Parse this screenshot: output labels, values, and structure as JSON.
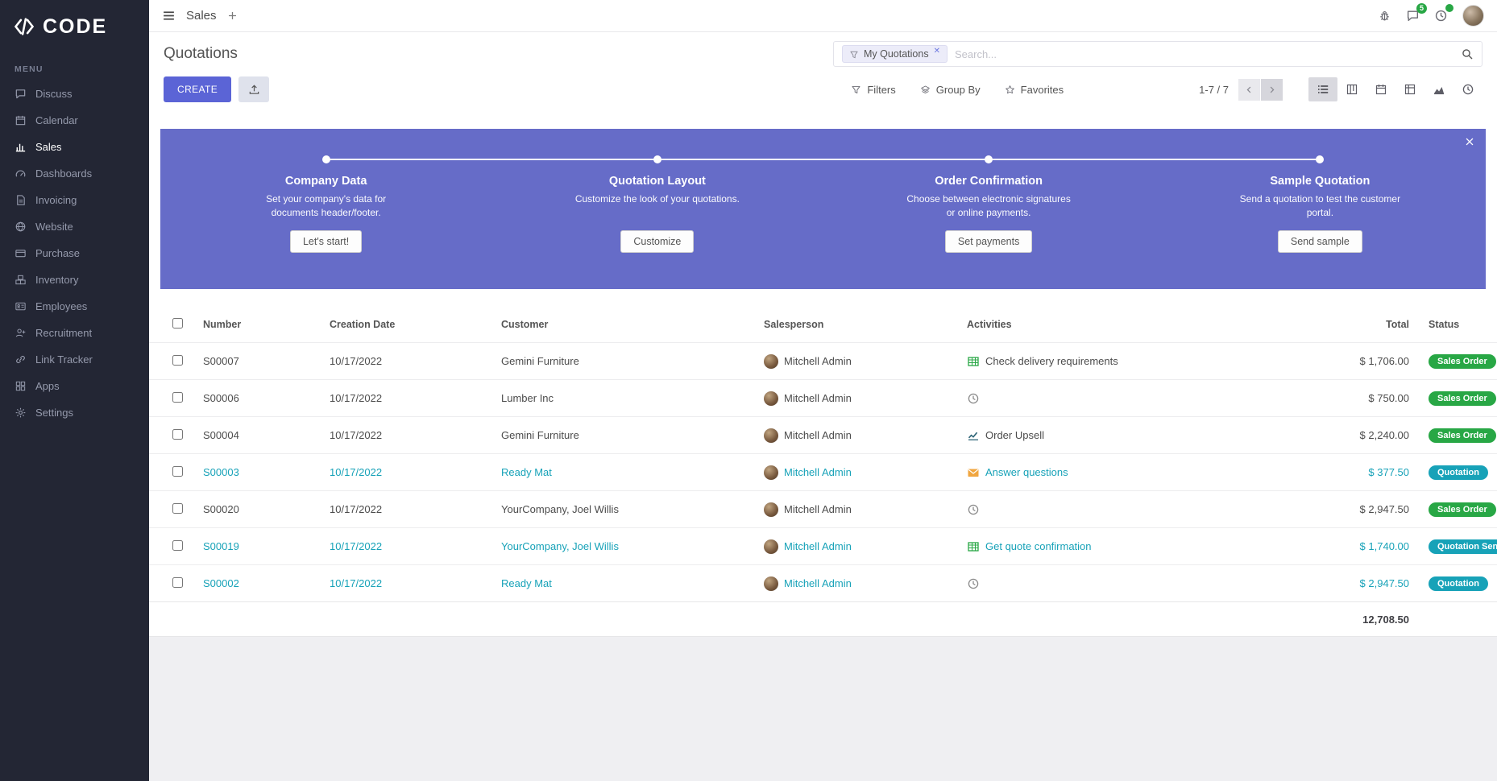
{
  "colors": {
    "primary": "#5b64d6",
    "success": "#28a745",
    "info": "#17a2b8",
    "sidebar_bg": "#232634",
    "banner": "#666cc8"
  },
  "brand": {
    "name": "CODE"
  },
  "sidebar": {
    "menu_label": "MENU",
    "items": [
      {
        "label": "Discuss",
        "icon": "chat",
        "active": false
      },
      {
        "label": "Calendar",
        "icon": "calendar",
        "active": false
      },
      {
        "label": "Sales",
        "icon": "bar-chart",
        "active": true
      },
      {
        "label": "Dashboards",
        "icon": "gauge",
        "active": false
      },
      {
        "label": "Invoicing",
        "icon": "document",
        "active": false
      },
      {
        "label": "Website",
        "icon": "globe",
        "active": false
      },
      {
        "label": "Purchase",
        "icon": "credit-card",
        "active": false
      },
      {
        "label": "Inventory",
        "icon": "boxes",
        "active": false
      },
      {
        "label": "Employees",
        "icon": "id-card",
        "active": false
      },
      {
        "label": "Recruitment",
        "icon": "user-plus",
        "active": false
      },
      {
        "label": "Link Tracker",
        "icon": "link",
        "active": false
      },
      {
        "label": "Apps",
        "icon": "grid",
        "active": false
      },
      {
        "label": "Settings",
        "icon": "gear",
        "active": false
      }
    ]
  },
  "topbar": {
    "app_name": "Sales",
    "messages_badge": "5"
  },
  "control_panel": {
    "title": "Quotations",
    "create_label": "CREATE",
    "search": {
      "facet_label": "My Quotations",
      "placeholder": "Search..."
    },
    "filters_label": "Filters",
    "group_by_label": "Group By",
    "favorites_label": "Favorites",
    "pager": "1-7 / 7"
  },
  "banner": {
    "steps": [
      {
        "title": "Company Data",
        "desc": "Set your company's data for documents header/footer.",
        "button": "Let's start!"
      },
      {
        "title": "Quotation Layout",
        "desc": "Customize the look of your quotations.",
        "button": "Customize"
      },
      {
        "title": "Order Confirmation",
        "desc": "Choose between electronic signatures or online payments.",
        "button": "Set payments"
      },
      {
        "title": "Sample Quotation",
        "desc": "Send a quotation to test the customer portal.",
        "button": "Send sample"
      }
    ]
  },
  "list": {
    "columns": [
      "Number",
      "Creation Date",
      "Customer",
      "Salesperson",
      "Activities",
      "Total",
      "Status"
    ],
    "rows": [
      {
        "number": "S00007",
        "creation_date": "10/17/2022",
        "customer": "Gemini Furniture",
        "salesperson": "Mitchell Admin",
        "activity": {
          "icon": "spreadsheet",
          "label": "Check delivery requirements"
        },
        "total": "$ 1,706.00",
        "status": {
          "label": "Sales Order",
          "variant": "success"
        },
        "accent": false
      },
      {
        "number": "S00006",
        "creation_date": "10/17/2022",
        "customer": "Lumber Inc",
        "salesperson": "Mitchell Admin",
        "activity": {
          "icon": "clock",
          "label": ""
        },
        "total": "$ 750.00",
        "status": {
          "label": "Sales Order",
          "variant": "success"
        },
        "accent": false
      },
      {
        "number": "S00004",
        "creation_date": "10/17/2022",
        "customer": "Gemini Furniture",
        "salesperson": "Mitchell Admin",
        "activity": {
          "icon": "line-chart",
          "label": "Order Upsell"
        },
        "total": "$ 2,240.00",
        "status": {
          "label": "Sales Order",
          "variant": "success"
        },
        "accent": false
      },
      {
        "number": "S00003",
        "creation_date": "10/17/2022",
        "customer": "Ready Mat",
        "salesperson": "Mitchell Admin",
        "activity": {
          "icon": "envelope",
          "label": "Answer questions"
        },
        "total": "$ 377.50",
        "status": {
          "label": "Quotation",
          "variant": "info"
        },
        "accent": true
      },
      {
        "number": "S00020",
        "creation_date": "10/17/2022",
        "customer": "YourCompany, Joel Willis",
        "salesperson": "Mitchell Admin",
        "activity": {
          "icon": "clock",
          "label": ""
        },
        "total": "$ 2,947.50",
        "status": {
          "label": "Sales Order",
          "variant": "success"
        },
        "accent": false
      },
      {
        "number": "S00019",
        "creation_date": "10/17/2022",
        "customer": "YourCompany, Joel Willis",
        "salesperson": "Mitchell Admin",
        "activity": {
          "icon": "spreadsheet",
          "label": "Get quote confirmation"
        },
        "total": "$ 1,740.00",
        "status": {
          "label": "Quotation Sent",
          "variant": "info"
        },
        "accent": true
      },
      {
        "number": "S00002",
        "creation_date": "10/17/2022",
        "customer": "Ready Mat",
        "salesperson": "Mitchell Admin",
        "activity": {
          "icon": "clock",
          "label": ""
        },
        "total": "$ 2,947.50",
        "status": {
          "label": "Quotation",
          "variant": "info"
        },
        "accent": true
      }
    ],
    "footer_total": "12,708.50"
  }
}
